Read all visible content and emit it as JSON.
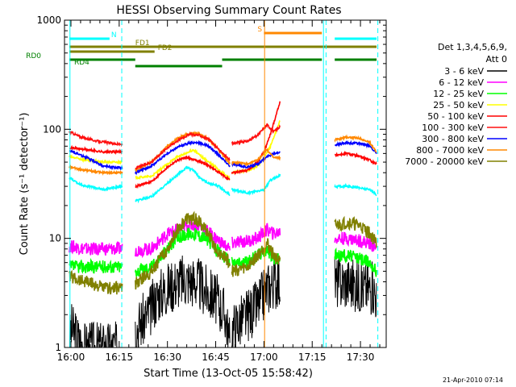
{
  "chart_data": {
    "type": "line",
    "title": "HESSI Observing Summary Count Rates",
    "xlabel": "Start Time (13-Oct-05 15:58:42)",
    "ylabel": "Count Rate (s⁻¹ detector⁻¹)",
    "yscale": "log",
    "ylim": [
      1,
      1000
    ],
    "xlim": [
      "15:58",
      "17:38"
    ],
    "grid": false,
    "legend_position": "right",
    "xticks": [
      {
        "label": "16:00",
        "min": 0
      },
      {
        "label": "16:15",
        "min": 15
      },
      {
        "label": "16:30",
        "min": 30
      },
      {
        "label": "16:45",
        "min": 45
      },
      {
        "label": "17:00",
        "min": 60
      },
      {
        "label": "17:15",
        "min": 75
      },
      {
        "label": "17:30",
        "min": 90
      }
    ],
    "yticks": [
      {
        "label": "1",
        "v": 1
      },
      {
        "label": "10",
        "v": 10
      },
      {
        "label": "100",
        "v": 100
      },
      {
        "label": "1000",
        "v": 1000
      }
    ],
    "legend": {
      "header1": "Det 1,3,4,5,6,9,",
      "header2": "Att 0"
    },
    "series": [
      {
        "name": "3 - 6 keV",
        "color": "#000000",
        "points": [
          [
            -0.5,
            1
          ],
          [
            0,
            1.5
          ],
          [
            4,
            1
          ],
          [
            16,
            1
          ],
          [
            20,
            1.5
          ],
          [
            24,
            2
          ],
          [
            27,
            3
          ],
          [
            30,
            3.5
          ],
          [
            33,
            4
          ],
          [
            36,
            4.2
          ],
          [
            39,
            4
          ],
          [
            42,
            3.3
          ],
          [
            45,
            2.8
          ],
          [
            48,
            2
          ],
          [
            49.5,
            1
          ],
          [
            50,
            1.5
          ],
          [
            55,
            2
          ],
          [
            58,
            2.4
          ],
          [
            61,
            3.5
          ],
          [
            63,
            4
          ],
          [
            65,
            4
          ]
        ],
        "segments": [
          [
            -0.5,
            16
          ],
          [
            20,
            49.5
          ],
          [
            50,
            65
          ],
          [
            82,
            95
          ]
        ],
        "extra": [
          [
            82,
            4
          ],
          [
            86,
            4
          ],
          [
            90,
            3.6
          ],
          [
            94,
            3.5
          ],
          [
            95,
            3
          ]
        ]
      },
      {
        "name": "6 - 12 keV",
        "color": "#ff00ff",
        "points": [
          [
            -0.5,
            8.5
          ],
          [
            5,
            8
          ],
          [
            10,
            8
          ],
          [
            16,
            8
          ],
          [
            20,
            7.8
          ],
          [
            25,
            8
          ],
          [
            30,
            11
          ],
          [
            33,
            12
          ],
          [
            36,
            13
          ],
          [
            39,
            13.5
          ],
          [
            42,
            12
          ],
          [
            45,
            10
          ],
          [
            49.5,
            8
          ],
          [
            50,
            9
          ],
          [
            55,
            9.5
          ],
          [
            58,
            10
          ],
          [
            61,
            12
          ],
          [
            63,
            11
          ],
          [
            65,
            11.5
          ]
        ],
        "segments": [
          [
            -0.5,
            16
          ],
          [
            20,
            49.5
          ],
          [
            50,
            65
          ]
        ],
        "extra": [
          [
            82,
            10
          ],
          [
            86,
            10
          ],
          [
            90,
            9.5
          ],
          [
            93,
            9
          ],
          [
            95,
            8
          ]
        ]
      },
      {
        "name": "12 - 25 keV",
        "color": "#00ff00",
        "points": [
          [
            -0.5,
            5.5
          ],
          [
            5,
            5.5
          ],
          [
            10,
            5.5
          ],
          [
            16,
            5.5
          ],
          [
            20,
            5
          ],
          [
            25,
            5.5
          ],
          [
            30,
            8
          ],
          [
            33,
            10
          ],
          [
            36,
            11
          ],
          [
            39,
            11
          ],
          [
            42,
            10
          ],
          [
            45,
            8
          ],
          [
            49.5,
            6
          ],
          [
            50,
            6
          ],
          [
            55,
            6
          ],
          [
            58,
            7
          ],
          [
            61,
            8
          ],
          [
            63,
            6.5
          ],
          [
            65,
            6.5
          ]
        ],
        "segments": [
          [
            -0.5,
            16
          ],
          [
            20,
            49.5
          ],
          [
            50,
            65
          ]
        ],
        "extra": [
          [
            82,
            7
          ],
          [
            86,
            7
          ],
          [
            90,
            6.5
          ],
          [
            93,
            6
          ],
          [
            95,
            5
          ]
        ]
      },
      {
        "name": "25 - 50 keV",
        "color": "#ffff00",
        "points": [
          [
            -0.5,
            56
          ],
          [
            5,
            52
          ],
          [
            10,
            50
          ],
          [
            16,
            50
          ],
          [
            20,
            36
          ],
          [
            25,
            37
          ],
          [
            30,
            48
          ],
          [
            33,
            56
          ],
          [
            36,
            60
          ],
          [
            38,
            65
          ],
          [
            40,
            58
          ],
          [
            42,
            52
          ],
          [
            45,
            45
          ],
          [
            49.5,
            35
          ],
          [
            50,
            40
          ],
          [
            55,
            42
          ],
          [
            58,
            46
          ],
          [
            60,
            54
          ],
          [
            62,
            70
          ],
          [
            65,
            120
          ]
        ],
        "segments": [
          [
            -0.5,
            16
          ],
          [
            20,
            49.5
          ],
          [
            50,
            65
          ]
        ],
        "extra": []
      },
      {
        "name": "50 - 100 keV",
        "color": "#ff0000",
        "points": [
          [
            -0.5,
            68
          ],
          [
            5,
            65
          ],
          [
            10,
            62
          ],
          [
            16,
            62
          ],
          [
            20,
            30
          ],
          [
            25,
            33
          ],
          [
            30,
            45
          ],
          [
            33,
            52
          ],
          [
            36,
            55
          ],
          [
            39,
            52
          ],
          [
            42,
            48
          ],
          [
            45,
            42
          ],
          [
            49.5,
            34
          ],
          [
            50,
            40
          ],
          [
            55,
            42
          ],
          [
            58,
            50
          ],
          [
            60,
            62
          ],
          [
            62,
            90
          ],
          [
            65,
            180
          ]
        ],
        "segments": [
          [
            -0.5,
            16
          ],
          [
            20,
            49.5
          ],
          [
            50,
            65
          ]
        ],
        "extra": [
          [
            82,
            58
          ],
          [
            86,
            60
          ],
          [
            90,
            56
          ],
          [
            93,
            52
          ],
          [
            95,
            48
          ]
        ]
      },
      {
        "name": "100 - 300 keV",
        "color": "#ff1010",
        "points": [
          [
            -0.5,
            95
          ],
          [
            3,
            85
          ],
          [
            8,
            78
          ],
          [
            16,
            72
          ],
          [
            20,
            44
          ],
          [
            25,
            50
          ],
          [
            30,
            68
          ],
          [
            34,
            82
          ],
          [
            37,
            90
          ],
          [
            40,
            88
          ],
          [
            43,
            80
          ],
          [
            46,
            65
          ],
          [
            49.5,
            52
          ],
          [
            50,
            74
          ],
          [
            55,
            78
          ],
          [
            58,
            88
          ],
          [
            61,
            110
          ],
          [
            63,
            95
          ],
          [
            65,
            105
          ]
        ],
        "segments": [
          [
            -0.5,
            16
          ],
          [
            20,
            49.5
          ],
          [
            50,
            65
          ]
        ],
        "extra": []
      },
      {
        "name": "300 - 800 keV",
        "color": "#0000ff",
        "points": [
          [
            -0.5,
            64
          ],
          [
            5,
            55
          ],
          [
            10,
            46
          ],
          [
            16,
            44
          ],
          [
            20,
            40
          ],
          [
            25,
            46
          ],
          [
            30,
            60
          ],
          [
            33,
            68
          ],
          [
            36,
            74
          ],
          [
            39,
            76
          ],
          [
            42,
            72
          ],
          [
            45,
            62
          ],
          [
            49.5,
            46
          ],
          [
            50,
            48
          ],
          [
            55,
            45
          ],
          [
            58,
            48
          ],
          [
            61,
            56
          ],
          [
            63,
            60
          ],
          [
            65,
            62
          ]
        ],
        "segments": [
          [
            -0.5,
            16
          ],
          [
            20,
            49.5
          ],
          [
            50,
            65
          ]
        ],
        "extra": [
          [
            82,
            72
          ],
          [
            86,
            75
          ],
          [
            90,
            74
          ],
          [
            93,
            70
          ],
          [
            95,
            60
          ]
        ]
      },
      {
        "name": "800 - 7000 keV",
        "color": "#ff8800",
        "points": [
          [
            -0.5,
            45
          ],
          [
            5,
            42
          ],
          [
            10,
            40
          ],
          [
            16,
            40
          ],
          [
            20,
            42
          ],
          [
            25,
            50
          ],
          [
            30,
            70
          ],
          [
            33,
            82
          ],
          [
            36,
            90
          ],
          [
            39,
            92
          ],
          [
            42,
            84
          ],
          [
            45,
            70
          ],
          [
            49.5,
            48
          ],
          [
            50,
            50
          ],
          [
            55,
            48
          ],
          [
            58,
            52
          ],
          [
            61,
            65
          ],
          [
            63,
            55
          ],
          [
            65,
            55
          ]
        ],
        "segments": [
          [
            -0.5,
            16
          ],
          [
            20,
            49.5
          ],
          [
            50,
            65
          ]
        ],
        "extra": [
          [
            82,
            80
          ],
          [
            86,
            85
          ],
          [
            90,
            82
          ],
          [
            93,
            75
          ],
          [
            95,
            62
          ]
        ]
      },
      {
        "name": "7000 - 20000 keV",
        "color": "#808000",
        "points": [
          [
            -0.5,
            4.5
          ],
          [
            5,
            4
          ],
          [
            10,
            3.5
          ],
          [
            16,
            3.5
          ],
          [
            20,
            3.8
          ],
          [
            25,
            5
          ],
          [
            30,
            8
          ],
          [
            33,
            12
          ],
          [
            36,
            15
          ],
          [
            39,
            15
          ],
          [
            42,
            12
          ],
          [
            45,
            8
          ],
          [
            49.5,
            6
          ],
          [
            50,
            5
          ],
          [
            55,
            5.5
          ],
          [
            58,
            7
          ],
          [
            61,
            9
          ],
          [
            63,
            7
          ],
          [
            65,
            6
          ]
        ],
        "segments": [
          [
            -0.5,
            16
          ],
          [
            20,
            49.5
          ],
          [
            50,
            65
          ]
        ],
        "extra": [
          [
            82,
            13
          ],
          [
            86,
            14
          ],
          [
            90,
            13
          ],
          [
            93,
            11
          ],
          [
            95,
            9
          ]
        ]
      },
      {
        "name": "",
        "color": "#00ffff",
        "points": [
          [
            -0.5,
            36
          ],
          [
            3,
            31
          ],
          [
            10,
            28
          ],
          [
            16,
            30
          ],
          [
            20,
            22
          ],
          [
            25,
            24
          ],
          [
            30,
            32
          ],
          [
            33,
            38
          ],
          [
            36,
            45
          ],
          [
            38,
            42
          ],
          [
            40,
            36
          ],
          [
            43,
            32
          ],
          [
            46,
            30
          ],
          [
            49.5,
            25
          ],
          [
            50,
            28
          ],
          [
            55,
            26
          ],
          [
            58,
            27
          ],
          [
            60,
            28
          ],
          [
            62,
            34
          ],
          [
            65,
            38
          ]
        ],
        "segments": [
          [
            -0.5,
            16
          ],
          [
            20,
            49.5
          ],
          [
            50,
            65
          ]
        ],
        "extra": [
          [
            82,
            30
          ],
          [
            86,
            30
          ],
          [
            90,
            29
          ],
          [
            93,
            28
          ],
          [
            95,
            25
          ]
        ]
      }
    ],
    "flags": [
      {
        "label": "N",
        "color": "#00ffff",
        "row": 1,
        "segments": [
          [
            -0.5,
            12
          ],
          [
            82,
            95
          ]
        ],
        "label_at": 12.5
      },
      {
        "label": "S",
        "color": "#ff8800",
        "row": 0,
        "segments": [
          [
            60,
            78
          ]
        ],
        "label_at": 58
      },
      {
        "label": "FD1",
        "color": "#808000",
        "row": 2,
        "segments": [
          [
            -0.5,
            95
          ]
        ],
        "label_at": 20
      },
      {
        "label": "FD2",
        "color": "#808000",
        "row": 3,
        "segments": [
          [
            -0.5,
            26
          ]
        ],
        "label_at": 27
      },
      {
        "label": "RD0",
        "color": "#008000",
        "row": 4,
        "segments": [
          [
            -0.5,
            20
          ],
          [
            47,
            78
          ],
          [
            82,
            95
          ]
        ],
        "label_at": -14
      },
      {
        "label": "RD4",
        "color": "#008000",
        "row": 5,
        "segments": [
          [
            20,
            47
          ]
        ],
        "label_at": 1
      }
    ],
    "vlines": [
      {
        "x": -0.3,
        "color": "#00ffff",
        "style": "solid"
      },
      {
        "x": 15.8,
        "color": "#00ffff",
        "style": "dash"
      },
      {
        "x": 60.2,
        "color": "#ff8800",
        "style": "solid"
      },
      {
        "x": 78.5,
        "color": "#00ffff",
        "style": "solid"
      },
      {
        "x": 79.3,
        "color": "#00ffff",
        "style": "dash"
      },
      {
        "x": 95.4,
        "color": "#00ffff",
        "style": "dash"
      }
    ],
    "footer": "21-Apr-2010 07:14"
  }
}
